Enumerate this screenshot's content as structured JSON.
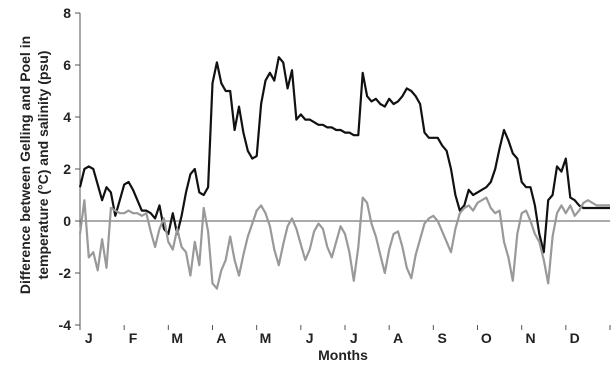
{
  "chart_data": {
    "type": "line",
    "title": "",
    "xlabel": "Months",
    "ylabel_lines": [
      "Difference between Gelling and Poel in",
      "temperature (°C)  and salinity (psu)"
    ],
    "ylim": [
      -4,
      8
    ],
    "yticks": [
      "-4",
      "-2",
      "0",
      "2",
      "4",
      "6",
      "8"
    ],
    "ytick_values": [
      -4,
      -2,
      0,
      2,
      4,
      6,
      8
    ],
    "xlim": [
      0,
      12
    ],
    "month_labels": [
      "J",
      "F",
      "M",
      "A",
      "M",
      "J",
      "J",
      "A",
      "S",
      "O",
      "N",
      "D"
    ],
    "grid": false,
    "series": [
      {
        "color": "#111111",
        "x": [
          0.0,
          0.1,
          0.2,
          0.3,
          0.4,
          0.5,
          0.6,
          0.7,
          0.8,
          0.9,
          1.0,
          1.1,
          1.2,
          1.3,
          1.4,
          1.5,
          1.6,
          1.7,
          1.8,
          1.9,
          2.0,
          2.1,
          2.2,
          2.3,
          2.4,
          2.5,
          2.6,
          2.7,
          2.8,
          2.9,
          3.0,
          3.1,
          3.2,
          3.3,
          3.4,
          3.5,
          3.6,
          3.7,
          3.8,
          3.9,
          4.0,
          4.1,
          4.2,
          4.3,
          4.4,
          4.5,
          4.6,
          4.7,
          4.8,
          4.9,
          5.0,
          5.1,
          5.2,
          5.3,
          5.4,
          5.5,
          5.6,
          5.7,
          5.8,
          5.9,
          6.0,
          6.1,
          6.2,
          6.3,
          6.4,
          6.5,
          6.6,
          6.7,
          6.8,
          6.9,
          7.0,
          7.1,
          7.2,
          7.3,
          7.4,
          7.5,
          7.6,
          7.7,
          7.8,
          7.9,
          8.0,
          8.1,
          8.2,
          8.3,
          8.4,
          8.5,
          8.6,
          8.7,
          8.8,
          8.9,
          9.0,
          9.1,
          9.2,
          9.3,
          9.4,
          9.5,
          9.6,
          9.7,
          9.8,
          9.9,
          10.0,
          10.1,
          10.2,
          10.3,
          10.4,
          10.5,
          10.6,
          10.7,
          10.8,
          10.9,
          11.0,
          11.1,
          11.2,
          11.3,
          11.4,
          11.5,
          11.6,
          11.7,
          11.8,
          11.9,
          12.0
        ],
        "values": [
          1.3,
          2.0,
          2.1,
          2.0,
          1.4,
          0.8,
          1.3,
          1.1,
          0.2,
          0.8,
          1.4,
          1.5,
          1.2,
          0.8,
          0.4,
          0.4,
          0.3,
          0.1,
          0.6,
          -0.3,
          -0.5,
          0.3,
          -0.5,
          0.2,
          1.1,
          1.8,
          2.0,
          1.1,
          1.0,
          1.3,
          5.3,
          6.1,
          5.3,
          5.0,
          5.0,
          3.5,
          4.4,
          3.4,
          2.7,
          2.4,
          2.5,
          4.5,
          5.4,
          5.7,
          5.4,
          6.3,
          6.1,
          5.1,
          5.8,
          3.9,
          4.1,
          3.9,
          3.9,
          3.8,
          3.7,
          3.7,
          3.6,
          3.6,
          3.5,
          3.5,
          3.4,
          3.4,
          3.3,
          3.3,
          5.7,
          4.8,
          4.6,
          4.7,
          4.5,
          4.4,
          4.7,
          4.5,
          4.6,
          4.8,
          5.1,
          5.0,
          4.8,
          4.5,
          3.4,
          3.2,
          3.2,
          3.2,
          2.9,
          2.7,
          2.0,
          1.0,
          0.4,
          0.6,
          1.2,
          1.0,
          1.1,
          1.2,
          1.3,
          1.5,
          2.0,
          2.8,
          3.5,
          3.1,
          2.6,
          2.4,
          1.5,
          1.3,
          1.3,
          0.6,
          -0.5,
          -1.2,
          0.8,
          1.0,
          2.1,
          1.9,
          2.4,
          0.9,
          0.8,
          0.6,
          0.5,
          0.5,
          0.5,
          0.5,
          0.5,
          0.5,
          0.5
        ]
      },
      {
        "color": "#999999",
        "x": [
          0.0,
          0.1,
          0.2,
          0.3,
          0.4,
          0.5,
          0.6,
          0.7,
          0.8,
          0.9,
          1.0,
          1.1,
          1.2,
          1.3,
          1.4,
          1.5,
          1.6,
          1.7,
          1.8,
          1.9,
          2.0,
          2.1,
          2.2,
          2.3,
          2.4,
          2.5,
          2.6,
          2.7,
          2.8,
          2.9,
          3.0,
          3.1,
          3.2,
          3.3,
          3.4,
          3.5,
          3.6,
          3.7,
          3.8,
          3.9,
          4.0,
          4.1,
          4.2,
          4.3,
          4.4,
          4.5,
          4.6,
          4.7,
          4.8,
          4.9,
          5.0,
          5.1,
          5.2,
          5.3,
          5.4,
          5.5,
          5.6,
          5.7,
          5.8,
          5.9,
          6.0,
          6.1,
          6.2,
          6.3,
          6.4,
          6.5,
          6.6,
          6.7,
          6.8,
          6.9,
          7.0,
          7.1,
          7.2,
          7.3,
          7.4,
          7.5,
          7.6,
          7.7,
          7.8,
          7.9,
          8.0,
          8.1,
          8.2,
          8.3,
          8.4,
          8.5,
          8.6,
          8.7,
          8.8,
          8.9,
          9.0,
          9.1,
          9.2,
          9.3,
          9.4,
          9.5,
          9.6,
          9.7,
          9.8,
          9.9,
          10.0,
          10.1,
          10.2,
          10.3,
          10.4,
          10.5,
          10.6,
          10.7,
          10.8,
          10.9,
          11.0,
          11.1,
          11.2,
          11.3,
          11.4,
          11.5,
          11.6,
          11.7,
          11.8,
          11.9,
          12.0
        ],
        "values": [
          -0.5,
          0.8,
          -1.4,
          -1.2,
          -1.9,
          -0.7,
          -1.8,
          0.5,
          0.4,
          0.3,
          0.3,
          0.4,
          0.3,
          0.3,
          0.2,
          0.3,
          -0.4,
          -1.0,
          -0.3,
          0.1,
          -0.8,
          -1.1,
          -0.3,
          -1.0,
          -1.2,
          -2.1,
          -0.8,
          -1.7,
          0.5,
          -0.4,
          -2.4,
          -2.6,
          -1.9,
          -1.5,
          -0.6,
          -1.5,
          -2.1,
          -1.3,
          -0.6,
          -0.1,
          0.4,
          0.6,
          0.3,
          -0.2,
          -1.1,
          -1.7,
          -0.9,
          -0.2,
          0.1,
          -0.3,
          -0.9,
          -1.5,
          -1.1,
          -0.4,
          -0.1,
          -0.3,
          -1.0,
          -1.4,
          -0.8,
          -0.2,
          -0.5,
          -1.2,
          -2.3,
          -1.0,
          0.9,
          0.7,
          -0.1,
          -0.6,
          -1.3,
          -2.0,
          -1.1,
          -0.5,
          -0.4,
          -1.0,
          -1.8,
          -2.2,
          -1.3,
          -0.7,
          -0.1,
          0.1,
          0.2,
          0.0,
          -0.4,
          -0.8,
          -1.2,
          -0.3,
          0.3,
          0.5,
          0.6,
          0.4,
          0.7,
          0.8,
          0.9,
          0.5,
          0.3,
          0.4,
          -0.8,
          -1.4,
          -2.3,
          -0.5,
          0.3,
          0.4,
          0.0,
          -0.5,
          -0.8,
          -1.5,
          -2.4,
          -0.6,
          0.3,
          0.6,
          0.3,
          0.6,
          0.2,
          0.4,
          0.7,
          0.8,
          0.7,
          0.6,
          0.6,
          0.6,
          0.6
        ]
      }
    ]
  }
}
